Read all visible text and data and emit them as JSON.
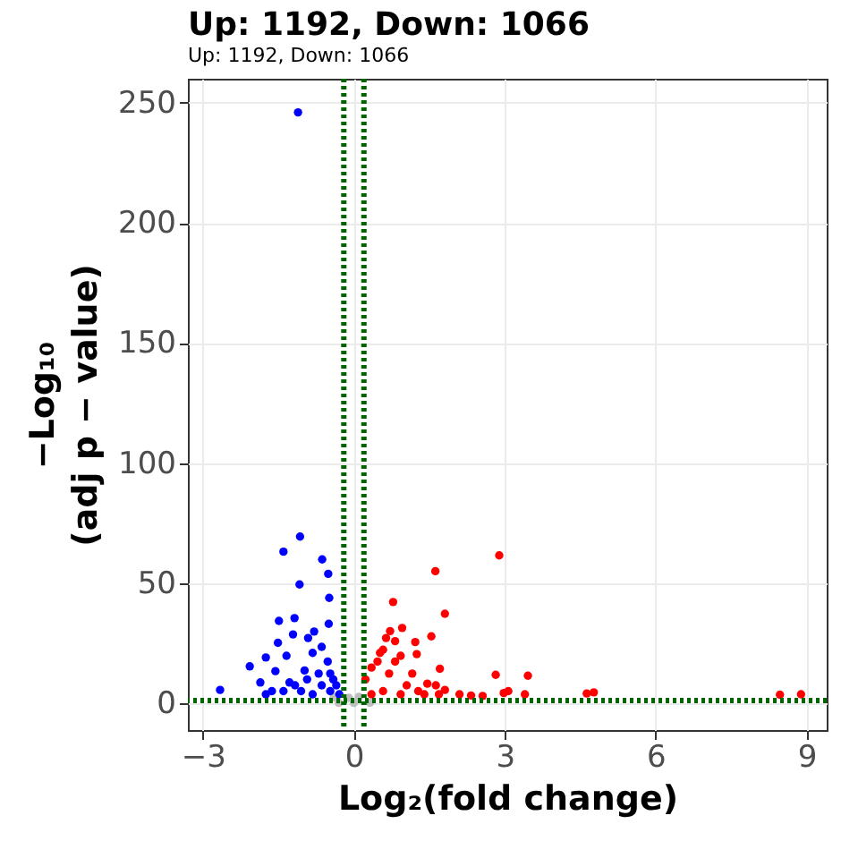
{
  "chart_data": {
    "type": "scatter",
    "title": "Up: 1192, Down: 1066",
    "subtitle": "Up: 1192, Down: 1066",
    "xlabel": "Log₂(fold change)",
    "ylabel": "−Log₁₀\n(adj p − value)",
    "xlim": [
      -3.3,
      9.4
    ],
    "ylim": [
      -11,
      260
    ],
    "xticks": [
      -3,
      0,
      3,
      6,
      9
    ],
    "yticks": [
      0,
      50,
      100,
      150,
      200,
      250
    ],
    "grid": true,
    "marker": "circle",
    "series": [
      {
        "color": "#bebebe",
        "x": [
          -0.4,
          -0.3,
          -0.1,
          0,
          0.1,
          0.32
        ],
        "values": [
          2.6,
          0.3,
          2.4,
          0.3,
          2.8,
          0.4
        ]
      },
      {
        "color": "#0000ff",
        "x": [
          -1.11,
          -2.66,
          -1.07,
          -1.4,
          -0.63,
          -0.51,
          -1.08,
          -0.49,
          -1.18,
          -1.49,
          -0.5,
          -0.79,
          -1.21,
          -1.51,
          -0.91,
          -1.75,
          -2.07,
          -1.34,
          -1.56,
          -1.86,
          -0.98,
          -0.82,
          -0.64,
          -0.52,
          -0.47,
          -0.35,
          -0.64,
          -1.17,
          -1.63,
          -1.75,
          -0.82,
          -0.47,
          -0.29,
          -0.41,
          -0.7,
          -0.93,
          -1.28,
          -1.4,
          -1.05
        ],
        "values": [
          246,
          5.7,
          69.5,
          63.2,
          60,
          54,
          49.6,
          44,
          35.6,
          34.4,
          33.2,
          30,
          28.8,
          25.3,
          27.3,
          19.2,
          15.5,
          19.9,
          13.5,
          8.8,
          13.8,
          21.1,
          23.6,
          17.5,
          12.5,
          7.6,
          7.6,
          7.6,
          5.2,
          3.9,
          3.9,
          5.2,
          3.9,
          10.1,
          12.5,
          10.1,
          8.8,
          5.2,
          5.2
        ]
      },
      {
        "color": "#ff0000",
        "x": [
          2.89,
          1.62,
          0.78,
          1.81,
          0.96,
          0.72,
          1.54,
          1.22,
          0.82,
          0.58,
          0.93,
          1.25,
          1.71,
          2.82,
          3.46,
          1.46,
          1.63,
          2.98,
          3.07,
          3.4,
          4.63,
          4.77,
          8.47,
          8.89,
          2.1,
          2.33,
          2.56,
          1.81,
          0.35,
          0.47,
          0.23,
          0.7,
          1.05,
          1.28,
          0.58,
          0.35,
          0.93,
          1.16,
          0.52,
          0.64,
          0.82,
          1.4,
          1.69
        ],
        "values": [
          61.7,
          55.1,
          42.3,
          37.4,
          31.5,
          30.2,
          28,
          25.6,
          26,
          22.4,
          19.9,
          20.6,
          14.5,
          12,
          11.6,
          8.3,
          7.6,
          4.4,
          5.2,
          3.9,
          4.2,
          4.7,
          3.7,
          3.9,
          3.9,
          3.4,
          3.2,
          5.7,
          15,
          17.5,
          10.1,
          12.5,
          7.6,
          5.2,
          5.2,
          3.9,
          3.9,
          12.5,
          21.1,
          27.3,
          17.5,
          3.9,
          3.9
        ]
      }
    ],
    "ref_lines": [
      {
        "axis": "x",
        "value": -0.2,
        "color": "#006400",
        "line_style": "dotted"
      },
      {
        "axis": "x",
        "value": 0.2,
        "color": "#006400",
        "line_style": "dotted"
      },
      {
        "axis": "y",
        "value": 1.3,
        "color": "#006400",
        "line_style": "dotted"
      }
    ]
  }
}
